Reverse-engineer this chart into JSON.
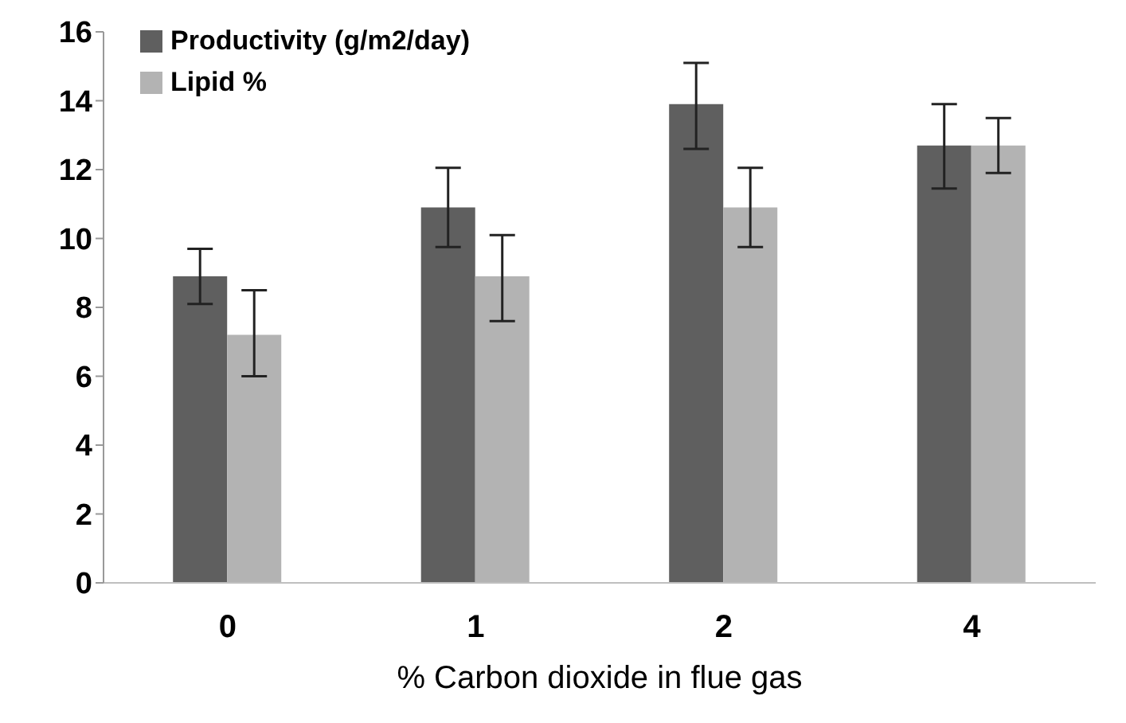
{
  "chart_data": {
    "type": "bar",
    "xlabel": "% Carbon dioxide in flue gas",
    "categories": [
      "0",
      "1",
      "2",
      "4"
    ],
    "series": [
      {
        "name": "Productivity (g/m2/day)",
        "color": "#5f5f5f",
        "values": [
          8.9,
          10.9,
          13.9,
          12.7
        ],
        "errors": [
          [
            8.1,
            9.7
          ],
          [
            9.75,
            12.05
          ],
          [
            12.6,
            15.1
          ],
          [
            11.45,
            13.9
          ]
        ]
      },
      {
        "name": "Lipid %",
        "color": "#b3b3b3",
        "values": [
          7.2,
          8.9,
          10.9,
          12.7
        ],
        "errors": [
          [
            6.0,
            8.5
          ],
          [
            7.6,
            10.1
          ],
          [
            9.75,
            12.05
          ],
          [
            11.9,
            13.5
          ]
        ]
      }
    ],
    "ylim": [
      0,
      16
    ],
    "yticks": [
      0,
      2,
      4,
      6,
      8,
      10,
      12,
      14,
      16
    ],
    "grid": false,
    "legend": "top left"
  }
}
